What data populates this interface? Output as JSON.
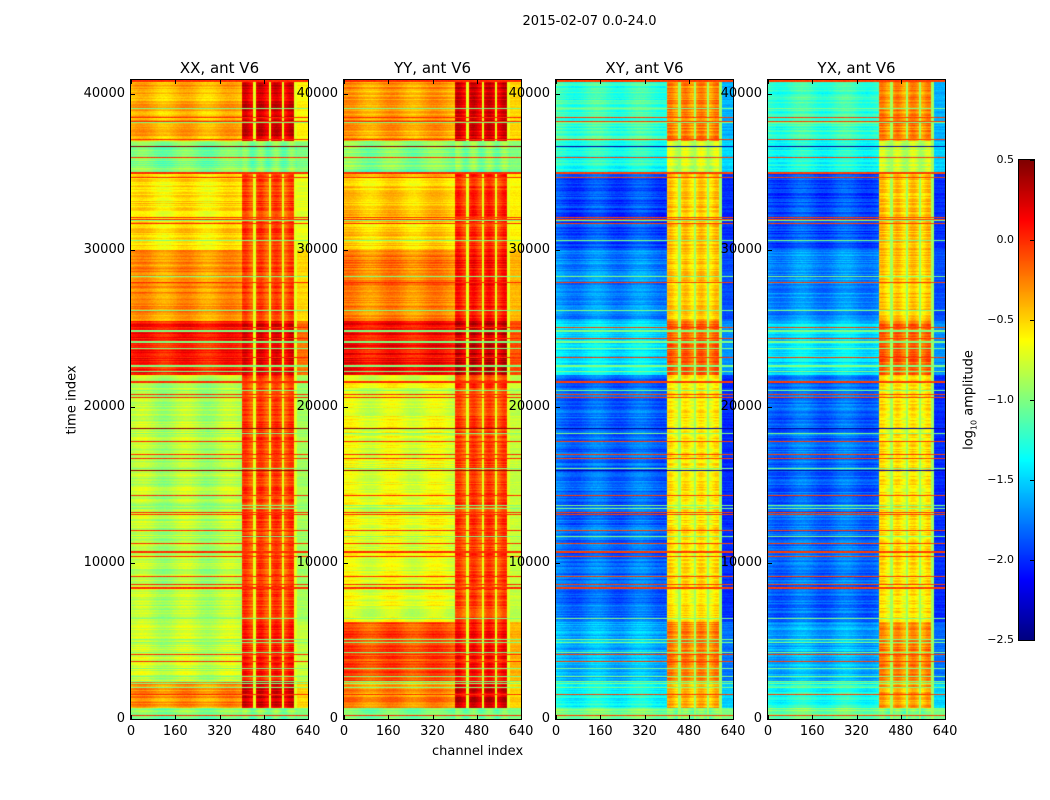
{
  "chart_data": {
    "type": "heatmap",
    "title": "2015-02-07 0.0-24.0",
    "xlabel": "channel index",
    "ylabel": "time index",
    "xlim": [
      0,
      640
    ],
    "ylim": [
      0,
      40896
    ],
    "xticks": [
      "0",
      "160",
      "320",
      "480",
      "640"
    ],
    "xtick_values": [
      0,
      160,
      320,
      480,
      640
    ],
    "yticks": [
      "0",
      "10000",
      "20000",
      "30000",
      "40000"
    ],
    "ytick_values": [
      0,
      10000,
      20000,
      30000,
      40000
    ],
    "colorbar": {
      "label_prefix": "log",
      "label_sub": "10",
      "label_suffix": " amplitude",
      "colormap": "jet",
      "range": [
        -2.5,
        0.5
      ],
      "ticks": [
        "0.5",
        "0.0",
        "−0.5",
        "−1.0",
        "−1.5",
        "−2.0",
        "−2.5"
      ],
      "tick_values": [
        0.5,
        0.0,
        -0.5,
        -1.0,
        -1.5,
        -2.0,
        -2.5
      ]
    },
    "segment_columns": [
      "t_start",
      "t_end",
      "level_ch0_400",
      "level_ch400_600",
      "level_ch600_640"
    ],
    "panels": [
      {
        "title": "XX, ant V6",
        "segments": [
          [
            0,
            700,
            -1.0,
            -1.0,
            -1.0
          ],
          [
            700,
            2400,
            -0.3,
            0.2,
            -0.5
          ],
          [
            2400,
            6200,
            -0.8,
            0.0,
            -0.8
          ],
          [
            6200,
            22000,
            -0.85,
            -0.1,
            -0.9
          ],
          [
            22000,
            25500,
            0.05,
            0.15,
            -0.2
          ],
          [
            25500,
            30000,
            -0.3,
            -0.1,
            -0.5
          ],
          [
            30000,
            35000,
            -0.55,
            -0.1,
            -0.7
          ],
          [
            35000,
            37000,
            -1.0,
            -1.0,
            -1.0
          ],
          [
            37000,
            40896,
            -0.4,
            0.2,
            -0.6
          ]
        ]
      },
      {
        "title": "YY, ant V6",
        "segments": [
          [
            0,
            700,
            -1.0,
            -1.0,
            -1.0
          ],
          [
            700,
            2400,
            -0.3,
            0.2,
            -0.5
          ],
          [
            2400,
            6200,
            -0.1,
            0.05,
            -0.4
          ],
          [
            6200,
            22000,
            -0.7,
            -0.1,
            -0.8
          ],
          [
            22000,
            25500,
            0.1,
            0.25,
            -0.1
          ],
          [
            25500,
            30000,
            -0.25,
            0.05,
            -0.4
          ],
          [
            30000,
            35000,
            -0.5,
            -0.05,
            -0.6
          ],
          [
            35000,
            37000,
            -1.0,
            -1.0,
            -1.0
          ],
          [
            37000,
            40896,
            -0.35,
            0.2,
            -0.5
          ]
        ]
      },
      {
        "title": "XY, ant V6",
        "segments": [
          [
            0,
            700,
            -1.0,
            -1.0,
            -1.0
          ],
          [
            700,
            2400,
            -1.3,
            -0.4,
            -1.5
          ],
          [
            2400,
            6200,
            -1.6,
            -0.3,
            -1.8
          ],
          [
            6200,
            22000,
            -1.8,
            -0.6,
            -2.0
          ],
          [
            22000,
            25500,
            -1.45,
            -0.2,
            -1.7
          ],
          [
            25500,
            30000,
            -1.7,
            -0.5,
            -1.9
          ],
          [
            30000,
            35000,
            -1.9,
            -0.5,
            -2.0
          ],
          [
            35000,
            37000,
            -1.3,
            -0.8,
            -1.5
          ],
          [
            37000,
            40896,
            -1.2,
            -0.3,
            -1.6
          ]
        ]
      },
      {
        "title": "YX, ant V6",
        "segments": [
          [
            0,
            700,
            -1.0,
            -1.0,
            -1.0
          ],
          [
            700,
            2400,
            -1.3,
            -0.4,
            -1.5
          ],
          [
            2400,
            6200,
            -1.6,
            -0.3,
            -1.8
          ],
          [
            6200,
            22000,
            -1.8,
            -0.6,
            -2.0
          ],
          [
            22000,
            25500,
            -1.45,
            -0.2,
            -1.7
          ],
          [
            25500,
            30000,
            -1.7,
            -0.5,
            -1.9
          ],
          [
            30000,
            35000,
            -1.9,
            -0.5,
            -2.0
          ],
          [
            35000,
            37000,
            -1.3,
            -0.8,
            -1.5
          ],
          [
            37000,
            40896,
            -1.2,
            -0.3,
            -1.6
          ]
        ]
      }
    ]
  }
}
